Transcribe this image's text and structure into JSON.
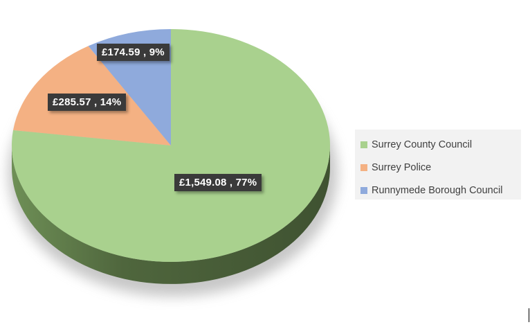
{
  "chart_data": {
    "type": "pie",
    "style": "3d-pie",
    "title": "",
    "categories": [
      "Surrey County Council",
      "Surrey Police",
      "Runnymede Borough Council"
    ],
    "values": [
      1549.08,
      285.57,
      174.59
    ],
    "percentages": [
      77,
      14,
      9
    ],
    "colors": [
      "#a9d18e",
      "#f4b183",
      "#8faadc"
    ],
    "side_colors": [
      "#445a34",
      "#9b6e4f",
      "#5a6e94"
    ],
    "data_labels": [
      "£1,549.08 , 77%",
      "£285.57 , 14%",
      "£174.59 , 9%"
    ],
    "legend_position": "right"
  },
  "legend": {
    "items": [
      {
        "label": "Surrey County Council",
        "color": "#a9d18e"
      },
      {
        "label": "Surrey Police",
        "color": "#f4b183"
      },
      {
        "label": "Runnymede Borough Council",
        "color": "#8faadc"
      }
    ]
  }
}
